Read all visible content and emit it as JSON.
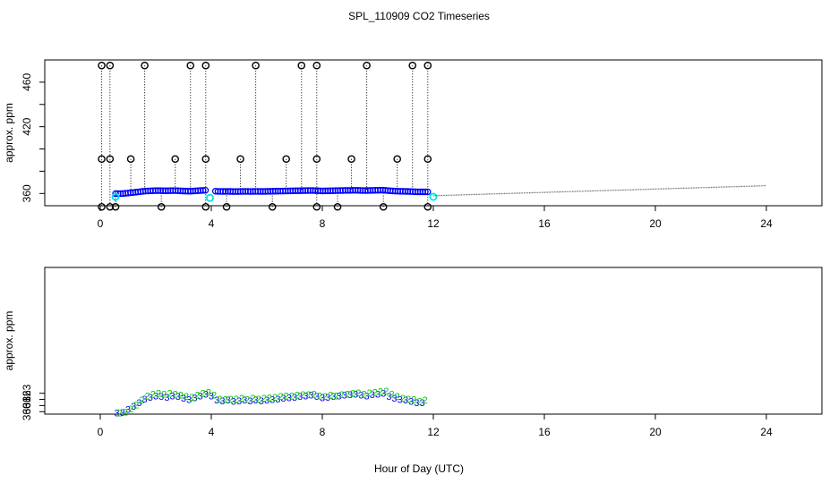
{
  "title": "SPL_110909  CO2 Timeseries",
  "xlabel": "Hour of Day (UTC)",
  "colors": {
    "axis": "#000000",
    "flag_markers": "#000000",
    "blue_series": "#0000ff",
    "green_series": "#00cc00",
    "cyan_markers": "#00e5e5",
    "stick_lines": "#000000",
    "gray_trace": "#555555"
  },
  "chart_data": [
    {
      "type": "scatter",
      "panel": "top",
      "ylabel": "approx. ppm",
      "xlim": [
        -2,
        26
      ],
      "ylim": [
        349,
        480
      ],
      "x_ticks": [
        0,
        4,
        8,
        12,
        16,
        20,
        24
      ],
      "y_ticks": [
        360,
        380,
        400,
        420,
        440,
        460
      ],
      "y_tick_labels": [
        "360",
        "",
        "",
        "420",
        "",
        "460"
      ],
      "flag_points": [
        {
          "x": 0.05,
          "values": [
            475,
            391,
            348
          ]
        },
        {
          "x": 0.35,
          "values": [
            475,
            391,
            348
          ]
        },
        {
          "x": 0.55,
          "values": [
            348
          ]
        },
        {
          "x": 1.1,
          "values": [
            391
          ]
        },
        {
          "x": 1.6,
          "values": [
            475
          ]
        },
        {
          "x": 2.2,
          "values": [
            348
          ]
        },
        {
          "x": 2.7,
          "values": [
            391
          ]
        },
        {
          "x": 3.25,
          "values": [
            475
          ]
        },
        {
          "x": 3.8,
          "values": [
            475,
            391,
            348
          ]
        },
        {
          "x": 4.55,
          "values": [
            348
          ]
        },
        {
          "x": 5.05,
          "values": [
            391
          ]
        },
        {
          "x": 5.6,
          "values": [
            475
          ]
        },
        {
          "x": 6.2,
          "values": [
            348
          ]
        },
        {
          "x": 6.7,
          "values": [
            391
          ]
        },
        {
          "x": 7.25,
          "values": [
            475
          ]
        },
        {
          "x": 7.8,
          "values": [
            475,
            391,
            348
          ]
        },
        {
          "x": 8.55,
          "values": [
            348
          ]
        },
        {
          "x": 9.05,
          "values": [
            391
          ]
        },
        {
          "x": 9.6,
          "values": [
            475
          ]
        },
        {
          "x": 10.2,
          "values": [
            348
          ]
        },
        {
          "x": 10.7,
          "values": [
            391
          ]
        },
        {
          "x": 11.25,
          "values": [
            475
          ]
        },
        {
          "x": 11.8,
          "values": [
            475,
            391,
            348
          ]
        }
      ],
      "cyan_points": [
        {
          "x": 0.55,
          "y": 357
        },
        {
          "x": 3.95,
          "y": 356
        },
        {
          "x": 12.0,
          "y": 357
        }
      ],
      "gray_trace": {
        "x_start": 12.0,
        "x_end": 24.0,
        "y_start": 358,
        "y_end": 367
      }
    },
    {
      "type": "scatter",
      "panel": "bottom",
      "ylabel": "approx. ppm",
      "xlim": [
        -2,
        26
      ],
      "ylim": [
        359.6,
        383.5
      ],
      "x_ticks": [
        0,
        4,
        8,
        12,
        16,
        20,
        24
      ],
      "y_ticks": [
        360,
        361,
        362,
        363
      ],
      "series": [
        {
          "name": "series-blue",
          "marker": "3",
          "color": "#0000ff",
          "x": [
            0.6,
            0.8,
            1.0,
            1.2,
            1.4,
            1.6,
            1.8,
            2.0,
            2.2,
            2.4,
            2.6,
            2.8,
            3.0,
            3.2,
            3.4,
            3.6,
            3.8,
            4.0,
            4.2,
            4.4,
            4.6,
            4.8,
            5.0,
            5.2,
            5.4,
            5.6,
            5.8,
            6.0,
            6.2,
            6.4,
            6.6,
            6.8,
            7.0,
            7.2,
            7.4,
            7.6,
            7.8,
            8.0,
            8.2,
            8.4,
            8.6,
            8.8,
            9.0,
            9.2,
            9.4,
            9.6,
            9.8,
            10.0,
            10.2,
            10.4,
            10.6,
            10.8,
            11.0,
            11.2,
            11.4,
            11.6
          ],
          "values": [
            359.8,
            359.9,
            360.4,
            360.9,
            361.5,
            362.1,
            362.4,
            362.6,
            362.5,
            362.4,
            362.6,
            362.5,
            362.2,
            362.0,
            362.3,
            362.6,
            362.9,
            362.6,
            361.9,
            361.8,
            361.9,
            361.7,
            361.8,
            361.9,
            361.8,
            361.9,
            361.8,
            361.9,
            362.0,
            362.1,
            362.2,
            362.3,
            362.4,
            362.5,
            362.6,
            362.7,
            362.5,
            362.3,
            362.4,
            362.5,
            362.6,
            362.7,
            362.8,
            362.9,
            362.7,
            362.6,
            362.8,
            362.9,
            363.0,
            362.5,
            362.2,
            362.0,
            361.9,
            361.7,
            361.5,
            361.5
          ]
        },
        {
          "name": "series-green",
          "marker": "2",
          "color": "#00cc00",
          "x": [
            0.7,
            0.9,
            1.1,
            1.3,
            1.5,
            1.7,
            1.9,
            2.1,
            2.3,
            2.5,
            2.7,
            2.9,
            3.1,
            3.3,
            3.5,
            3.7,
            3.9,
            4.1,
            4.3,
            4.5,
            4.7,
            4.9,
            5.1,
            5.3,
            5.5,
            5.7,
            5.9,
            6.1,
            6.3,
            6.5,
            6.7,
            6.9,
            7.1,
            7.3,
            7.5,
            7.7,
            7.9,
            8.1,
            8.3,
            8.5,
            8.7,
            8.9,
            9.1,
            9.3,
            9.5,
            9.7,
            9.9,
            10.1,
            10.3,
            10.5,
            10.7,
            10.9,
            11.1,
            11.3,
            11.5,
            11.7
          ],
          "values": [
            359.8,
            360.0,
            360.5,
            361.1,
            361.9,
            362.6,
            362.9,
            363.0,
            362.9,
            363.0,
            362.9,
            362.7,
            362.5,
            362.4,
            362.7,
            363.0,
            363.2,
            362.7,
            362.1,
            362.0,
            362.1,
            362.1,
            362.2,
            362.0,
            362.2,
            362.1,
            362.2,
            362.3,
            362.4,
            362.5,
            362.6,
            362.6,
            362.7,
            362.8,
            362.8,
            362.9,
            362.6,
            362.5,
            362.7,
            362.6,
            362.8,
            362.9,
            363.0,
            363.1,
            362.9,
            363.1,
            363.2,
            363.3,
            363.4,
            362.9,
            362.5,
            362.2,
            362.1,
            362.0,
            361.7,
            361.9
          ]
        }
      ]
    }
  ]
}
